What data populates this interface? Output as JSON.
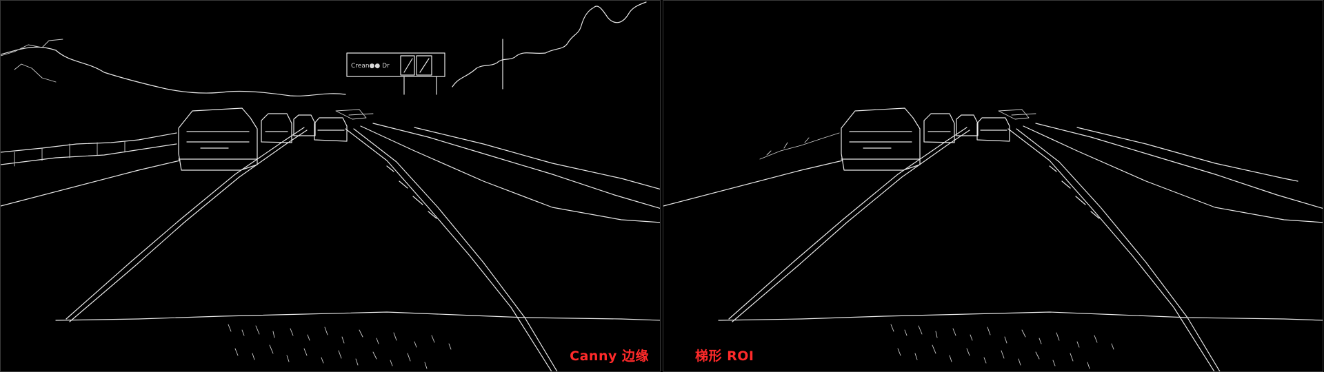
{
  "panels": [
    {
      "caption": "Canny 边缘",
      "sign_text": "Crean●● Dr"
    },
    {
      "caption": "梯形 ROI"
    }
  ],
  "colors": {
    "background": "#000000",
    "edges": "#e8e8e8",
    "caption": "#ff2a2a"
  }
}
